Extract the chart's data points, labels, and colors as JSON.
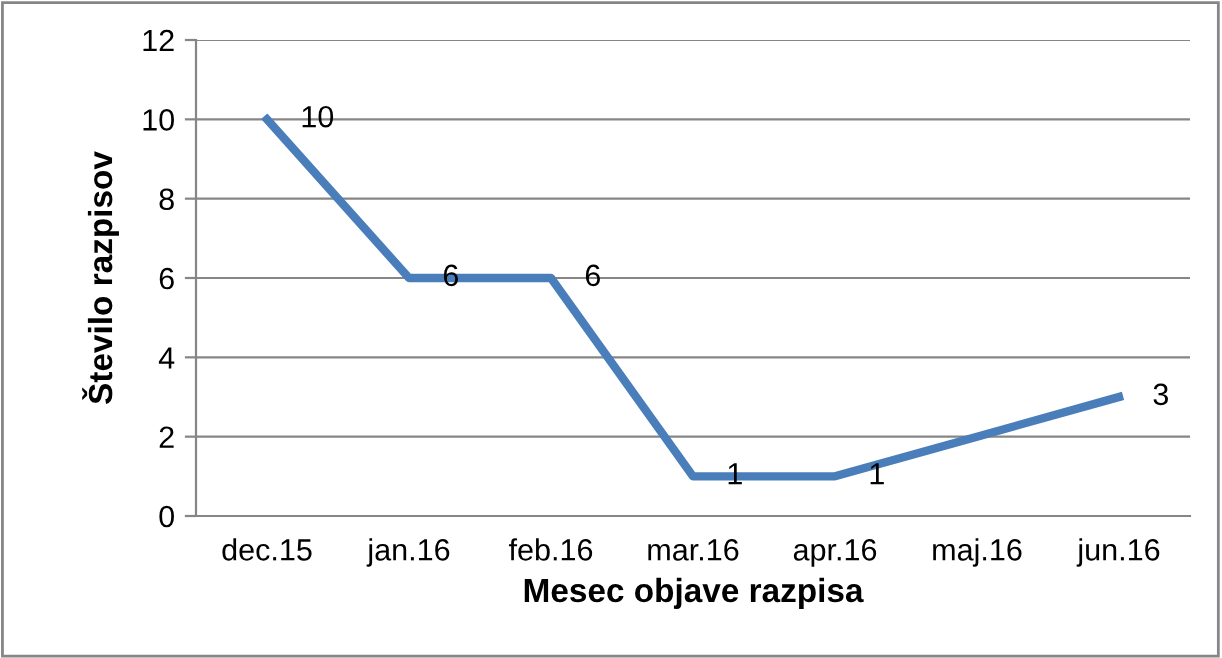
{
  "chart_data": {
    "type": "line",
    "xlabel": "Mesec objave razpisa",
    "ylabel": "Število razpisov",
    "categories": [
      "dec.15",
      "jan.16",
      "feb.16",
      "mar.16",
      "apr.16",
      "maj.16",
      "jun.16"
    ],
    "series": [
      {
        "color": "#4a7ebb",
        "values": [
          10,
          6,
          6,
          1,
          1,
          2,
          3
        ],
        "value_labels": [
          "10",
          "6",
          "6",
          "1",
          "1",
          null,
          "3"
        ]
      }
    ],
    "ylim": [
      0,
      12
    ],
    "yticks": [
      0,
      2,
      4,
      6,
      8,
      10,
      12
    ],
    "grid": "y",
    "legend": false,
    "marker": "none",
    "line_style": "solid"
  }
}
